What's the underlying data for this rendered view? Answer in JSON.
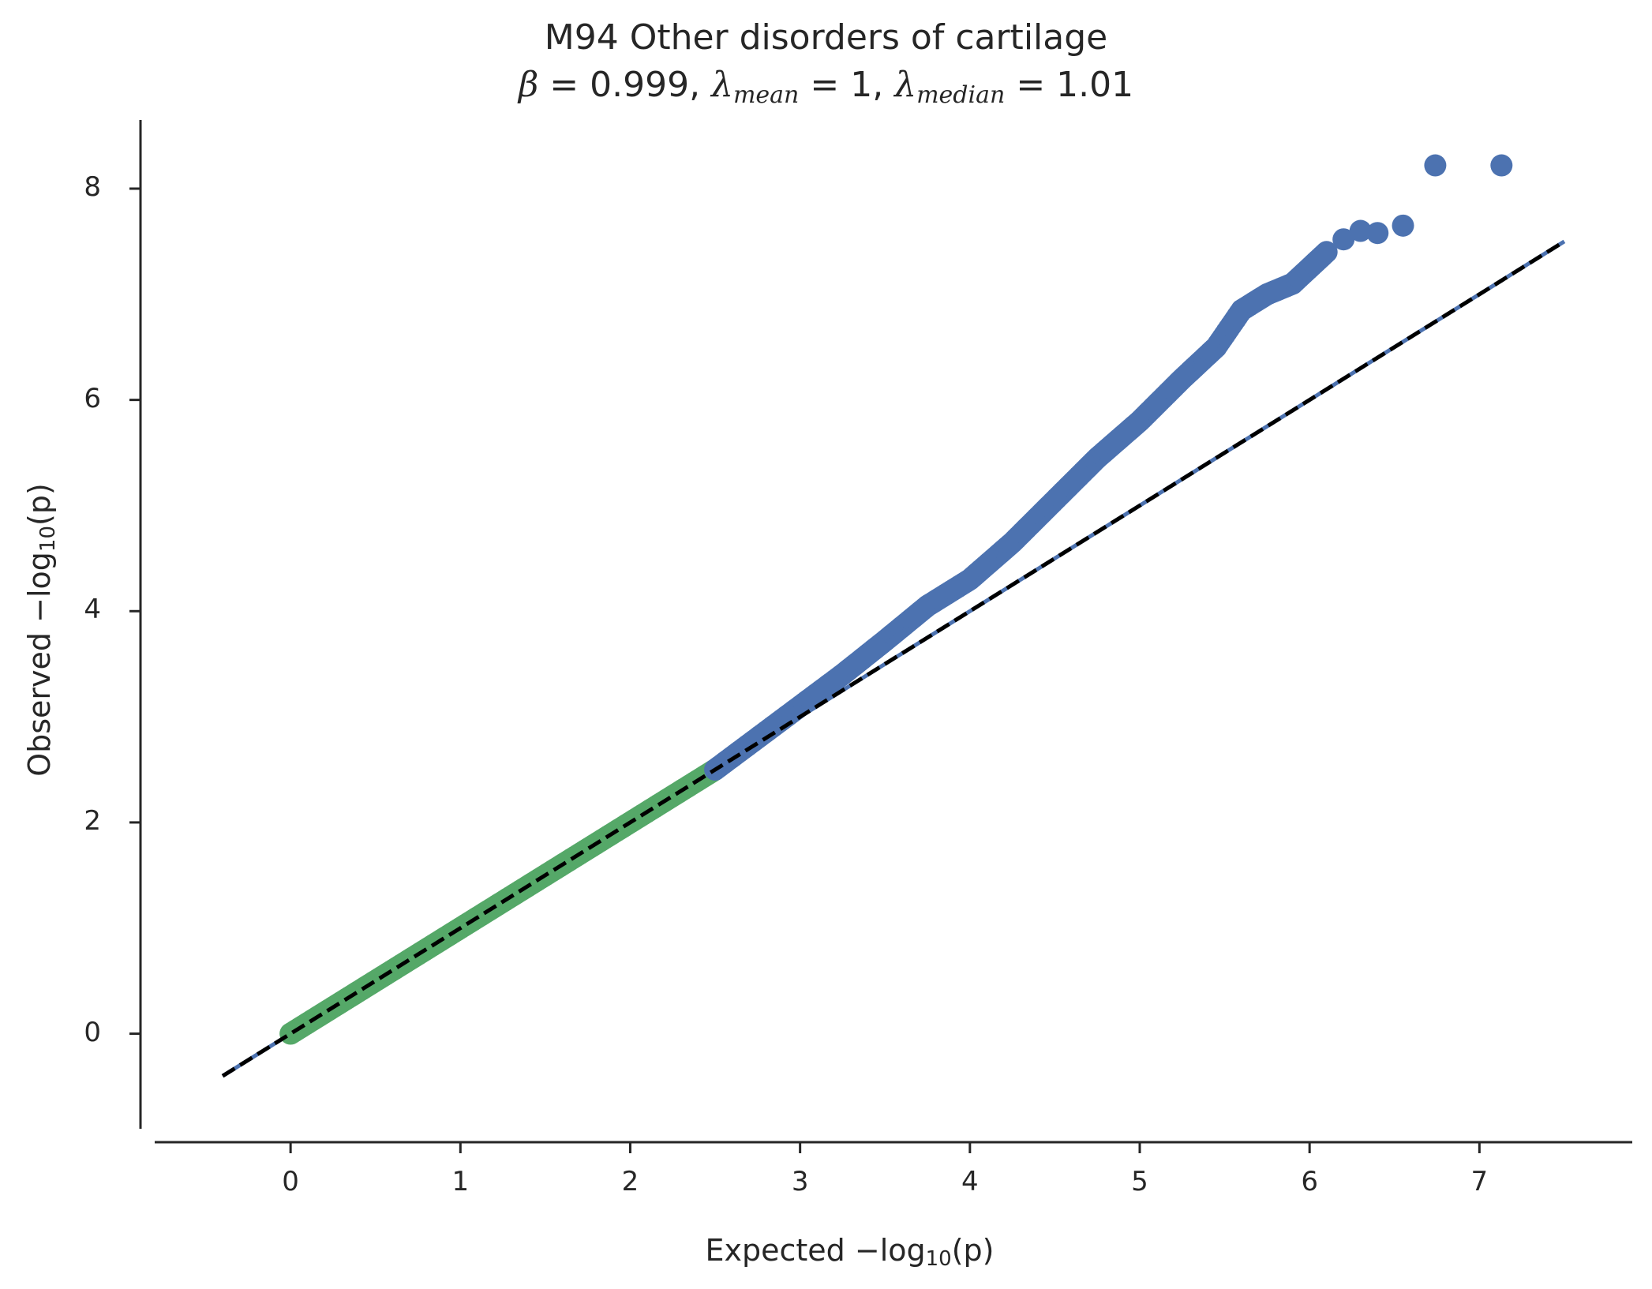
{
  "chart_data": {
    "type": "scatter",
    "title": "M94 Other disorders of cartilage",
    "subtitle": {
      "beta_symbol": "β",
      "beta_value": "0.999",
      "lambda_symbol": "λ",
      "lambda_mean_sub": "mean",
      "lambda_mean_value": "1",
      "lambda_median_sub": "median",
      "lambda_median_value": "1.01"
    },
    "xlabel": {
      "text": "Expected −log",
      "sub": "10",
      "suffix": "(p)"
    },
    "ylabel": {
      "text": "Observed −log",
      "sub": "10",
      "suffix": "(p)"
    },
    "xlim": [
      -0.8,
      7.9
    ],
    "ylim": [
      -0.9,
      8.65
    ],
    "xticks": [
      0,
      1,
      2,
      3,
      4,
      5,
      6,
      7
    ],
    "yticks": [
      0,
      2,
      4,
      6,
      8
    ],
    "grid": false,
    "colors": {
      "low": "#55a868",
      "high": "#4c72b0",
      "reference": "#000000",
      "axis": "#262626"
    },
    "series": [
      {
        "color": "#55a868",
        "x": [
          0.0,
          0.1,
          0.25,
          0.5,
          0.75,
          1.0,
          1.25,
          1.5,
          1.75,
          2.0,
          2.25,
          2.5
        ],
        "y": [
          0.0,
          0.1,
          0.25,
          0.5,
          0.75,
          1.0,
          1.25,
          1.5,
          1.75,
          2.0,
          2.25,
          2.5
        ]
      },
      {
        "color": "#4c72b0",
        "x": [
          2.5,
          2.75,
          3.0,
          3.25,
          3.5,
          3.75,
          4.0,
          4.25,
          4.5,
          4.75,
          5.0,
          5.25,
          5.45,
          5.6,
          5.75,
          5.9,
          6.0,
          6.1,
          6.2,
          6.3,
          6.4,
          6.55,
          6.74,
          7.13
        ],
        "y": [
          2.5,
          2.8,
          3.1,
          3.4,
          3.72,
          4.05,
          4.3,
          4.65,
          5.05,
          5.45,
          5.8,
          6.2,
          6.5,
          6.85,
          7.0,
          7.1,
          7.25,
          7.4,
          7.52,
          7.6,
          7.58,
          7.65,
          8.22,
          8.22
        ]
      }
    ],
    "reference_line": {
      "x": [
        -0.4,
        7.5
      ],
      "y": [
        -0.4,
        7.5
      ],
      "style": "dashed"
    }
  }
}
